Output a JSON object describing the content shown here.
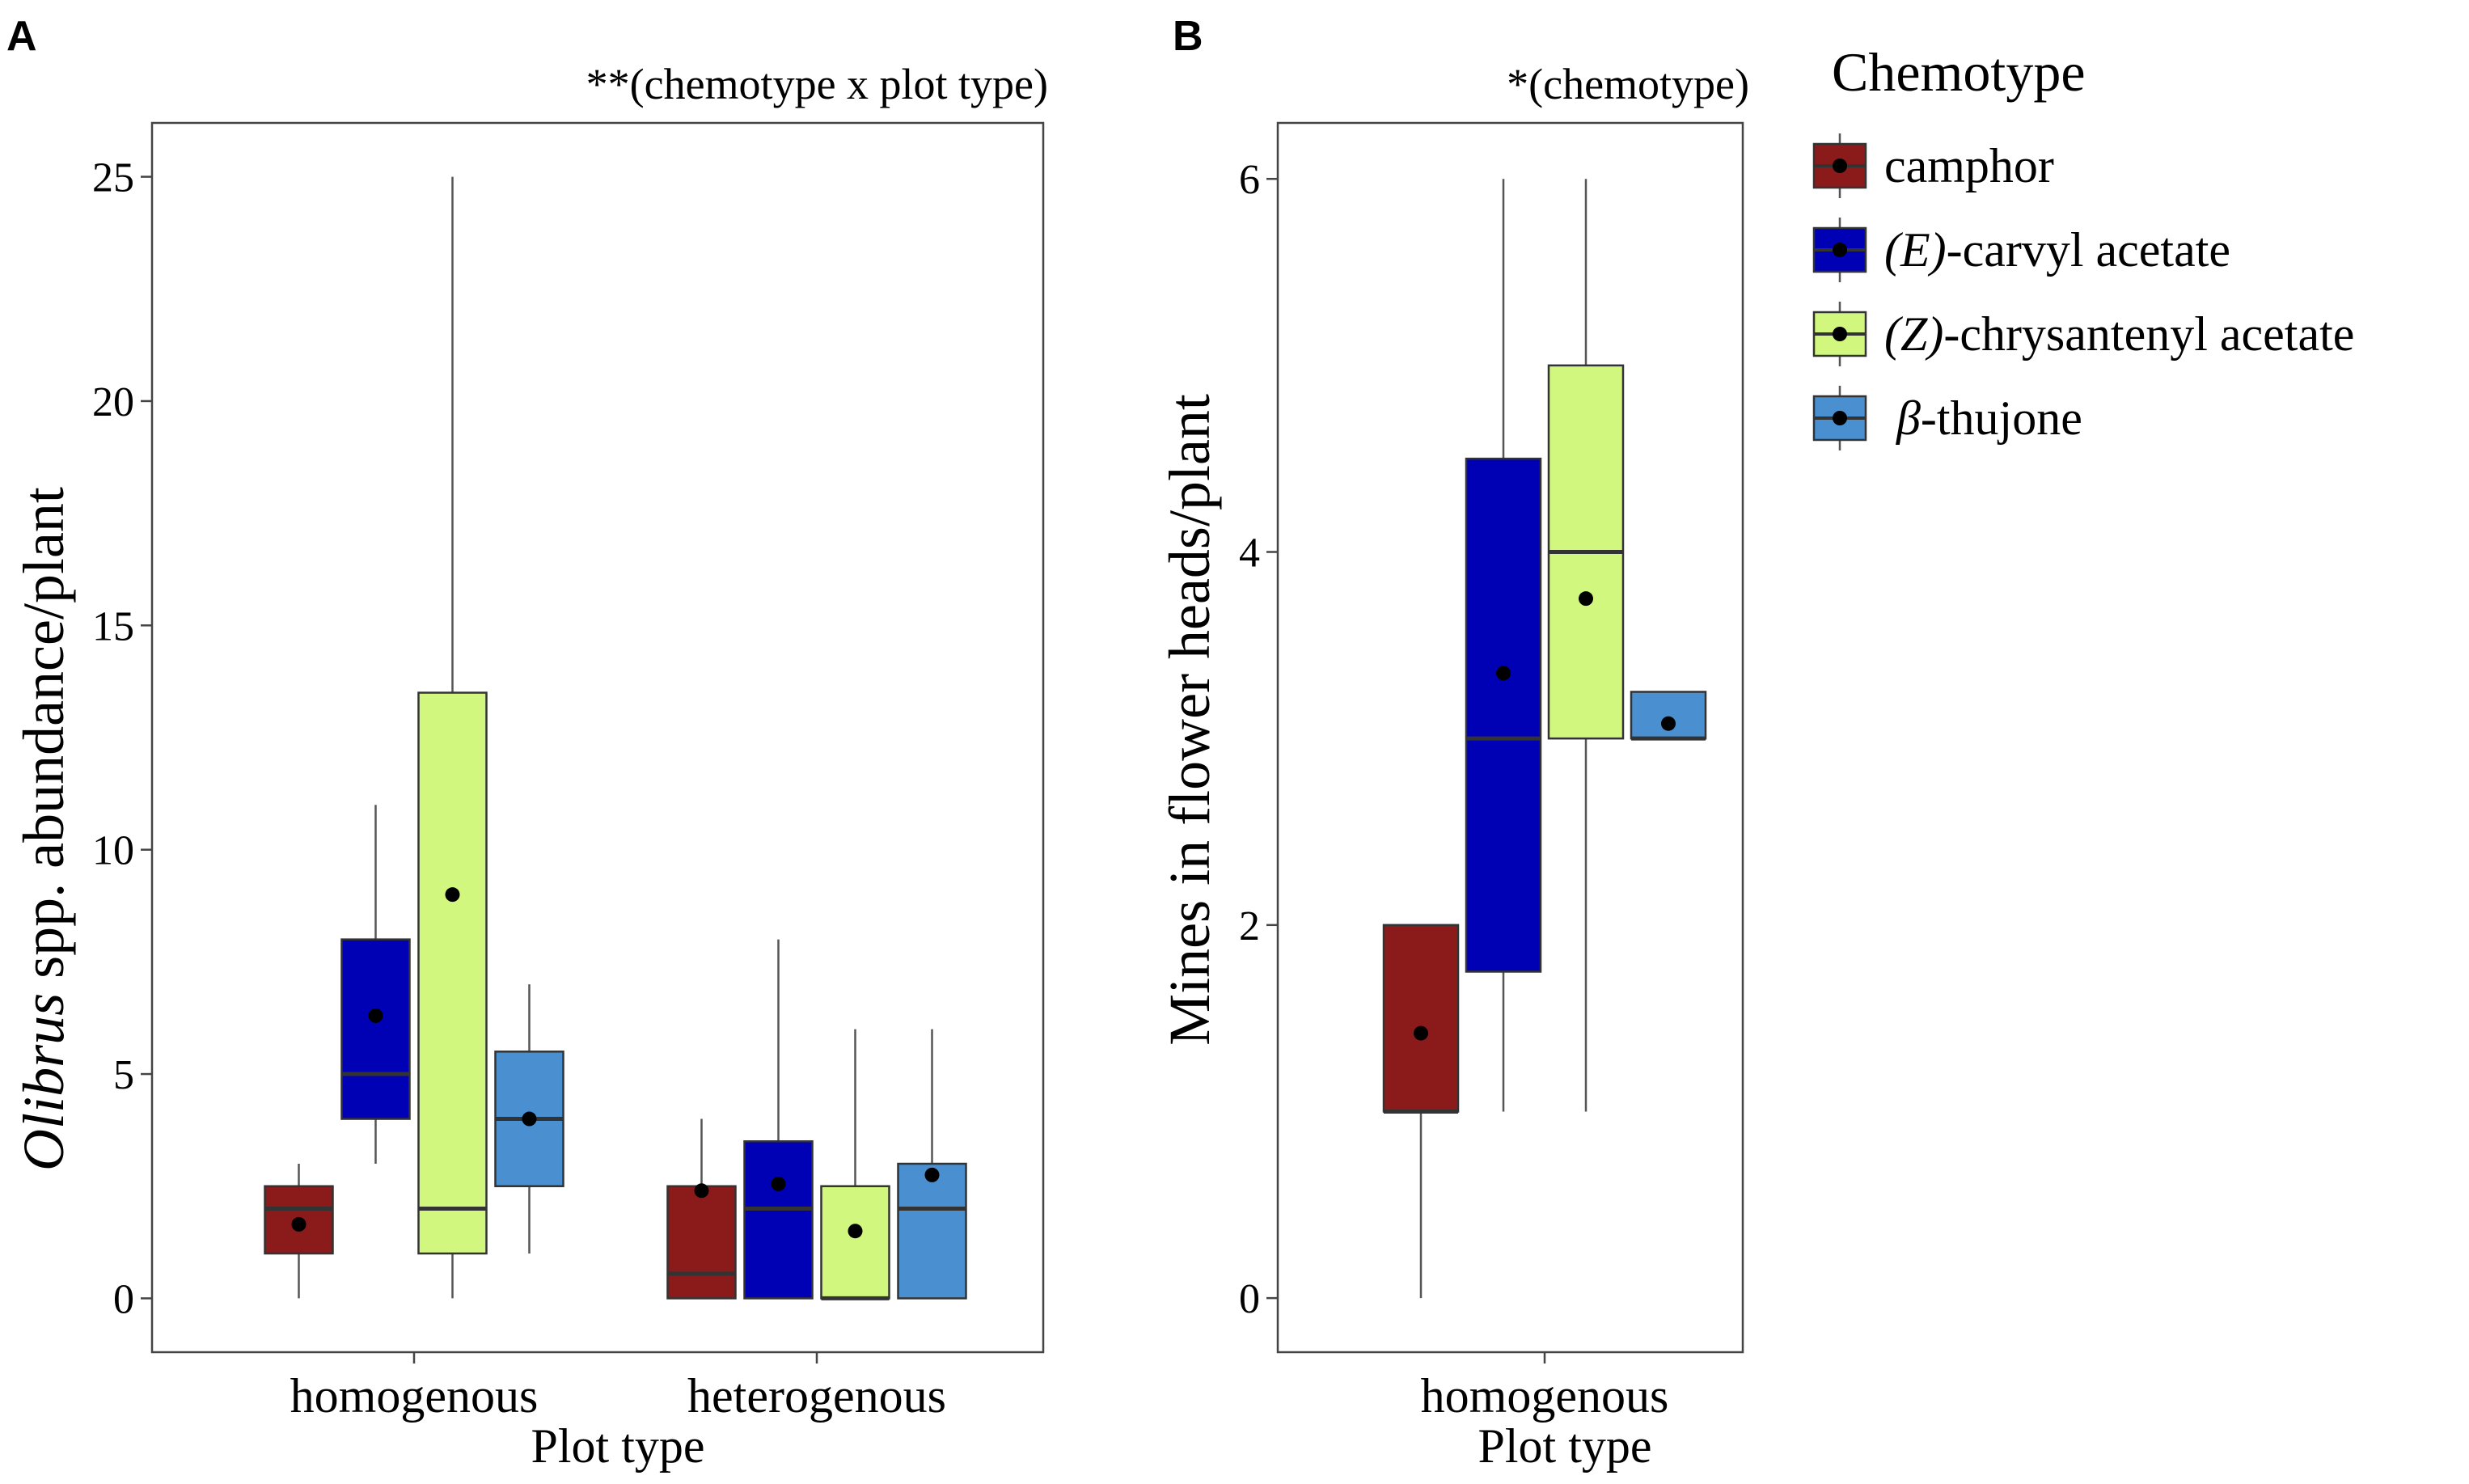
{
  "colors": {
    "camphor": "#8b1a1a",
    "e_carvyl": "#0000b4",
    "z_chrys": "#d2f77f",
    "thujone": "#4a90d0"
  },
  "legend": {
    "title": "Chemotype",
    "items": [
      {
        "key": "camphor",
        "prefix": "",
        "label": "camphor"
      },
      {
        "key": "e_carvyl",
        "prefix": "(E)",
        "label": "-carvyl acetate"
      },
      {
        "key": "z_chrys",
        "prefix": "(Z)",
        "label": "-chrysantenyl acetate"
      },
      {
        "key": "thujone",
        "prefix": "β",
        "label": "-thujone"
      }
    ]
  },
  "chart_data": [
    {
      "type": "box",
      "panel_label": "A",
      "annotation": "**(chemotype x plot type)",
      "ylabel_italic": "Olibrus",
      "ylabel_rest": " spp. abundance/plant",
      "xlabel": "Plot type",
      "ylim": [
        -1.2,
        26.2
      ],
      "yticks": [
        0,
        5,
        10,
        15,
        20,
        25
      ],
      "categories": [
        "homogenous",
        "heterogenous"
      ],
      "series_order": [
        "camphor",
        "e_carvyl",
        "z_chrys",
        "thujone"
      ],
      "boxes": [
        {
          "category": "homogenous",
          "series": "camphor",
          "min": 0,
          "q1": 1,
          "median": 2,
          "q3": 2.5,
          "max": 3,
          "mean": 1.65
        },
        {
          "category": "homogenous",
          "series": "e_carvyl",
          "min": 3,
          "q1": 4,
          "median": 5,
          "q3": 8,
          "max": 11,
          "mean": 6.3
        },
        {
          "category": "homogenous",
          "series": "z_chrys",
          "min": 0,
          "q1": 1,
          "median": 2,
          "q3": 13.5,
          "max": 25,
          "mean": 9
        },
        {
          "category": "homogenous",
          "series": "thujone",
          "min": 1,
          "q1": 2.5,
          "median": 4,
          "q3": 5.5,
          "max": 7,
          "mean": 4
        },
        {
          "category": "heterogenous",
          "series": "camphor",
          "min": 0,
          "q1": 0,
          "median": 0.55,
          "q3": 2.5,
          "max": 4,
          "mean": 2.4
        },
        {
          "category": "heterogenous",
          "series": "e_carvyl",
          "min": 0,
          "q1": 0,
          "median": 2,
          "q3": 3.5,
          "max": 8,
          "mean": 2.55
        },
        {
          "category": "heterogenous",
          "series": "z_chrys",
          "min": 0,
          "q1": 0,
          "median": 0,
          "q3": 2.5,
          "max": 6,
          "mean": 1.5
        },
        {
          "category": "heterogenous",
          "series": "thujone",
          "min": 0,
          "q1": 0,
          "median": 2,
          "q3": 3,
          "max": 6,
          "mean": 2.75
        }
      ]
    },
    {
      "type": "box",
      "panel_label": "B",
      "annotation": "*(chemotype)",
      "ylabel": "Mines in flower heads/plant",
      "xlabel": "Plot type",
      "ylim": [
        -0.29,
        6.3
      ],
      "yticks": [
        0,
        2,
        4,
        6
      ],
      "categories": [
        "homogenous"
      ],
      "series_order": [
        "camphor",
        "e_carvyl",
        "z_chrys",
        "thujone"
      ],
      "boxes": [
        {
          "category": "homogenous",
          "series": "camphor",
          "min": 0,
          "q1": 1,
          "median": 1,
          "q3": 2,
          "max": 2,
          "mean": 1.42
        },
        {
          "category": "homogenous",
          "series": "e_carvyl",
          "min": 1,
          "q1": 1.75,
          "median": 3,
          "q3": 4.5,
          "max": 6,
          "mean": 3.35
        },
        {
          "category": "homogenous",
          "series": "z_chrys",
          "min": 1,
          "q1": 3,
          "median": 4,
          "q3": 5,
          "max": 6,
          "mean": 3.75
        },
        {
          "category": "homogenous",
          "series": "thujone",
          "min": 3,
          "q1": 3,
          "median": 3,
          "q3": 3.25,
          "max": 3.25,
          "mean": 3.08
        }
      ]
    }
  ]
}
